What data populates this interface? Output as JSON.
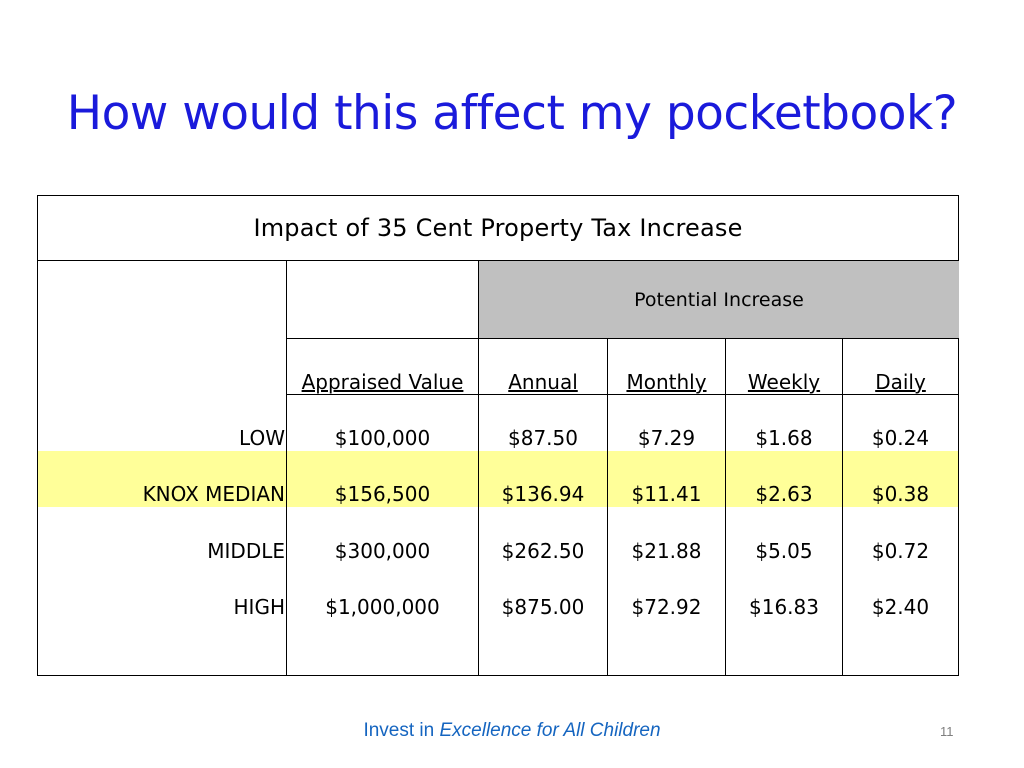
{
  "slide": {
    "title": "How would this affect my pocketbook?",
    "page_number": "11"
  },
  "table": {
    "caption": "Impact of 35 Cent Property Tax Increase",
    "group_header": "Potential Increase",
    "columns": [
      "Appraised Value",
      "Annual",
      "Monthly",
      "Weekly",
      "Daily"
    ],
    "rows": [
      {
        "label": "LOW",
        "values": [
          "$100,000",
          "$87.50",
          "$7.29",
          "$1.68",
          "$0.24"
        ],
        "highlighted": false
      },
      {
        "label": "KNOX MEDIAN",
        "values": [
          "$156,500",
          "$136.94",
          "$11.41",
          "$2.63",
          "$0.38"
        ],
        "highlighted": true
      },
      {
        "label": "MIDDLE",
        "values": [
          "$300,000",
          "$262.50",
          "$21.88",
          "$5.05",
          "$0.72"
        ],
        "highlighted": false
      },
      {
        "label": "HIGH",
        "values": [
          "$1,000,000",
          "$875.00",
          "$72.92",
          "$16.83",
          "$2.40"
        ],
        "highlighted": false
      }
    ]
  },
  "footer": {
    "prefix": "Invest in ",
    "emphasis": "Excellence for All Children"
  },
  "colors": {
    "title": "#1a1adb",
    "header_fill": "#c0c0c0",
    "highlight_fill": "#ffff99",
    "footer_text": "#1565c0"
  }
}
